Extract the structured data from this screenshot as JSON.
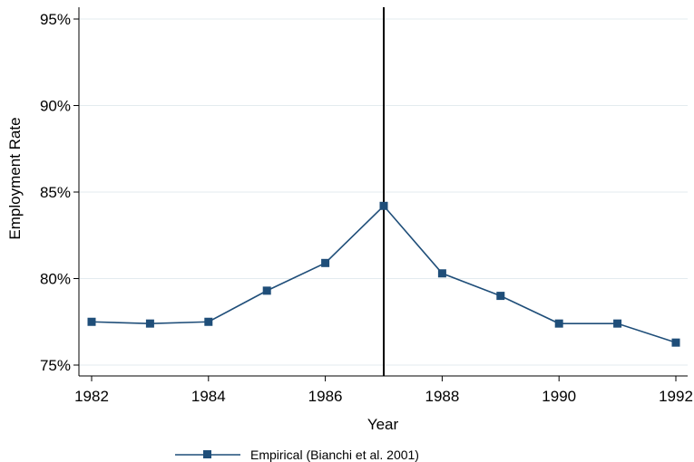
{
  "chart_data": {
    "type": "line",
    "xlabel": "Year",
    "ylabel": "Employment Rate",
    "xlim": [
      1982,
      1992
    ],
    "ylim": [
      0.745,
      0.96
    ],
    "x_ticks": [
      1982,
      1984,
      1986,
      1988,
      1990,
      1992
    ],
    "y_ticks": [
      0.75,
      0.8,
      0.85,
      0.9,
      0.95
    ],
    "y_tick_labels": [
      "75%",
      "80%",
      "85%",
      "90%",
      "95%"
    ],
    "grid": "horizontal",
    "vertical_reference_line": 1987,
    "series": [
      {
        "name": "Empirical (Bianchi et al. 2001)",
        "color": "#1f4e79",
        "marker": "square",
        "x": [
          1982,
          1983,
          1984,
          1985,
          1986,
          1987,
          1988,
          1989,
          1990,
          1991,
          1992
        ],
        "y": [
          0.775,
          0.774,
          0.775,
          0.793,
          0.809,
          0.842,
          0.803,
          0.79,
          0.774,
          0.774,
          0.763
        ]
      }
    ],
    "legend_position": "bottom-center"
  }
}
